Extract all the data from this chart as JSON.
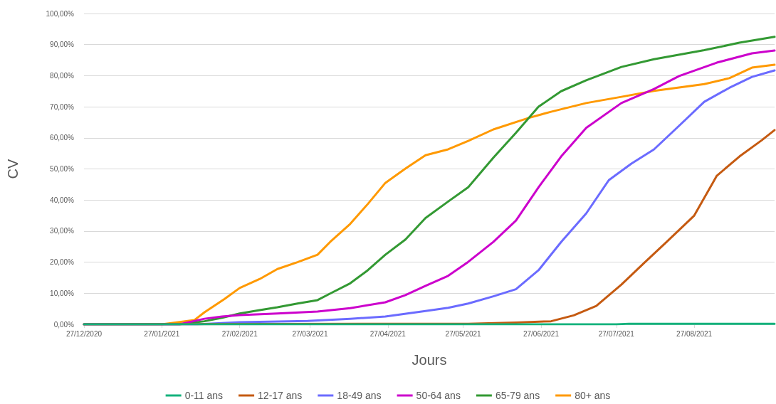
{
  "chart_data": {
    "type": "line",
    "xlabel": "Jours",
    "ylabel": "CV",
    "xlim": [
      "2020-12-27",
      "2021-09-28"
    ],
    "xticks": [
      {
        "value": "2020-12-27",
        "label": "27/12/2020"
      },
      {
        "value": "2021-01-27",
        "label": "27/01/2021"
      },
      {
        "value": "2021-02-27",
        "label": "27/02/2021"
      },
      {
        "value": "2021-03-27",
        "label": "27/03/2021"
      },
      {
        "value": "2021-04-27",
        "label": "27/04/2021"
      },
      {
        "value": "2021-05-27",
        "label": "27/05/2021"
      },
      {
        "value": "2021-06-27",
        "label": "27/06/2021"
      },
      {
        "value": "2021-07-27",
        "label": "27/07/2021"
      },
      {
        "value": "2021-08-27",
        "label": "27/08/2021"
      }
    ],
    "ylim": [
      0,
      100
    ],
    "yticks": [
      {
        "value": 0,
        "label": "0,00%"
      },
      {
        "value": 10,
        "label": "10,00%"
      },
      {
        "value": 20,
        "label": "20,00%"
      },
      {
        "value": 30,
        "label": "30,00%"
      },
      {
        "value": 40,
        "label": "40,00%"
      },
      {
        "value": 50,
        "label": "50,00%"
      },
      {
        "value": 60,
        "label": "60,00%"
      },
      {
        "value": 70,
        "label": "70,00%"
      },
      {
        "value": 80,
        "label": "80,00%"
      },
      {
        "value": 90,
        "label": "90,00%"
      },
      {
        "value": 100,
        "label": "100,00%"
      }
    ],
    "grid": "y",
    "legend": "bottom",
    "marker": "none",
    "line_style": "solid",
    "series": [
      {
        "name": "0-11 ans",
        "color": "#14b27c",
        "x": [
          "2020-12-27",
          "2021-07-27",
          "2021-08-01",
          "2021-09-28"
        ],
        "values": [
          0,
          0,
          0.2,
          0.2
        ]
      },
      {
        "name": "12-17 ans",
        "color": "#c55a11",
        "x": [
          "2020-12-27",
          "2021-05-29",
          "2021-06-17",
          "2021-07-01",
          "2021-07-10",
          "2021-07-19",
          "2021-07-29",
          "2021-08-07",
          "2021-08-16",
          "2021-08-27",
          "2021-09-05",
          "2021-09-14",
          "2021-09-23",
          "2021-09-28"
        ],
        "values": [
          0,
          0.2,
          0.6,
          1,
          2.9,
          5.9,
          12.8,
          19.7,
          26.5,
          35,
          47.8,
          54,
          59.3,
          62.5
        ]
      },
      {
        "name": "18-49 ans",
        "color": "#6b6bff",
        "x": [
          "2020-12-27",
          "2021-02-10",
          "2021-02-27",
          "2021-03-26",
          "2021-04-12",
          "2021-04-26",
          "2021-05-12",
          "2021-05-21",
          "2021-05-29",
          "2021-06-08",
          "2021-06-17",
          "2021-06-26",
          "2021-07-05",
          "2021-07-15",
          "2021-07-24",
          "2021-08-02",
          "2021-08-11",
          "2021-08-21",
          "2021-08-31",
          "2021-09-10",
          "2021-09-19",
          "2021-09-28"
        ],
        "values": [
          0,
          0,
          0.7,
          1.1,
          1.8,
          2.5,
          4.3,
          5.3,
          6.7,
          9,
          11.3,
          17.4,
          26.5,
          35.7,
          46.4,
          51.7,
          56.3,
          63.9,
          71.6,
          76.1,
          79.6,
          81.7
        ]
      },
      {
        "name": "50-64 ans",
        "color": "#cc00cc",
        "x": [
          "2020-12-27",
          "2021-02-03",
          "2021-02-13",
          "2021-02-20",
          "2021-02-27",
          "2021-03-14",
          "2021-03-30",
          "2021-04-12",
          "2021-04-26",
          "2021-05-04",
          "2021-05-12",
          "2021-05-21",
          "2021-05-29",
          "2021-06-08",
          "2021-06-17",
          "2021-06-26",
          "2021-07-05",
          "2021-07-15",
          "2021-07-29",
          "2021-08-11",
          "2021-08-21",
          "2021-09-05",
          "2021-09-19",
          "2021-09-28"
        ],
        "values": [
          0,
          0,
          1.8,
          2.5,
          3,
          3.5,
          4.1,
          5.2,
          7.1,
          9.4,
          12.4,
          15.6,
          20.1,
          26.5,
          33.4,
          44.1,
          54,
          63.2,
          71.2,
          75.7,
          79.9,
          84.2,
          87.2,
          88.1
        ]
      },
      {
        "name": "65-79 ans",
        "color": "#339933",
        "x": [
          "2020-12-27",
          "2021-02-03",
          "2021-02-13",
          "2021-02-20",
          "2021-02-27",
          "2021-03-07",
          "2021-03-14",
          "2021-03-22",
          "2021-03-30",
          "2021-04-04",
          "2021-04-12",
          "2021-04-19",
          "2021-04-26",
          "2021-05-04",
          "2021-05-12",
          "2021-05-21",
          "2021-05-29",
          "2021-06-08",
          "2021-06-17",
          "2021-06-26",
          "2021-07-05",
          "2021-07-15",
          "2021-07-29",
          "2021-08-11",
          "2021-08-31",
          "2021-09-14",
          "2021-09-28"
        ],
        "values": [
          0,
          0,
          1,
          2.1,
          3.5,
          4.6,
          5.5,
          6.7,
          7.8,
          9.9,
          13.2,
          17.4,
          22.4,
          27.3,
          34.2,
          39.5,
          44.1,
          53.6,
          61.6,
          70,
          75,
          78.5,
          82.8,
          85.3,
          88.2,
          90.6,
          92.5
        ]
      },
      {
        "name": "80+ ans",
        "color": "#ff9900",
        "x": [
          "2020-12-27",
          "2021-01-27",
          "2021-02-09",
          "2021-02-13",
          "2021-02-21",
          "2021-02-27",
          "2021-03-07",
          "2021-03-14",
          "2021-03-22",
          "2021-03-30",
          "2021-04-04",
          "2021-04-12",
          "2021-04-19",
          "2021-04-26",
          "2021-05-04",
          "2021-05-12",
          "2021-05-21",
          "2021-05-29",
          "2021-06-08",
          "2021-06-22",
          "2021-07-01",
          "2021-07-15",
          "2021-07-29",
          "2021-08-11",
          "2021-08-31",
          "2021-09-10",
          "2021-09-19",
          "2021-09-28"
        ],
        "values": [
          0,
          0,
          1.4,
          3.9,
          8.2,
          11.7,
          14.6,
          17.8,
          20,
          22.4,
          26.5,
          32.3,
          38.7,
          45.5,
          50.1,
          54.4,
          56.3,
          59,
          62.7,
          66.4,
          68.4,
          71.2,
          73.2,
          75.1,
          77.3,
          79.2,
          82.6,
          83.5
        ]
      }
    ]
  }
}
